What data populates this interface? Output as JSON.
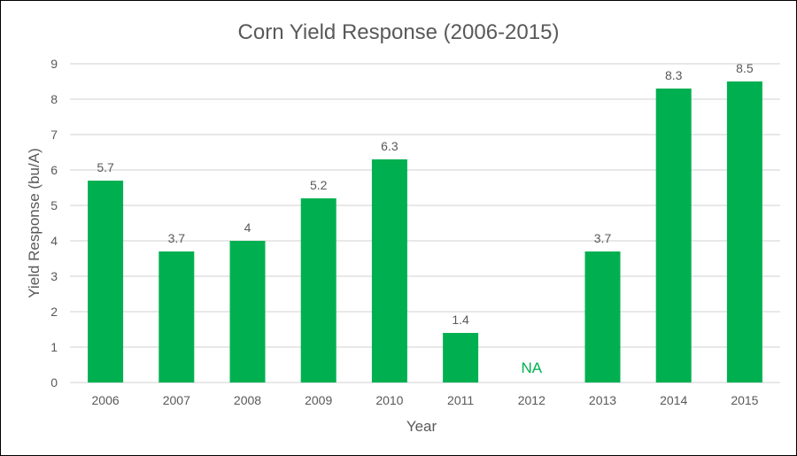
{
  "chart_data": {
    "type": "bar",
    "title": "Corn Yield Response (2006-2015)",
    "xlabel": "Year",
    "ylabel": "Yield Response (bu/A)",
    "categories": [
      "2006",
      "2007",
      "2008",
      "2009",
      "2010",
      "2011",
      "2012",
      "2013",
      "2014",
      "2015"
    ],
    "values": [
      5.7,
      3.7,
      4,
      5.2,
      6.3,
      1.4,
      null,
      3.7,
      8.3,
      8.5
    ],
    "data_labels": [
      "5.7",
      "3.7",
      "4",
      "5.2",
      "6.3",
      "1.4",
      "NA",
      "3.7",
      "8.3",
      "8.5"
    ],
    "ylim": [
      0,
      9
    ],
    "yticks": [
      "0",
      "1",
      "2",
      "3",
      "4",
      "5",
      "6",
      "7",
      "8",
      "9"
    ],
    "grid": true,
    "legend": "none",
    "colors": {
      "bar": "#00b050",
      "na_label": "#00b050",
      "grid": "#d9d9d9",
      "text": "#595959"
    }
  }
}
